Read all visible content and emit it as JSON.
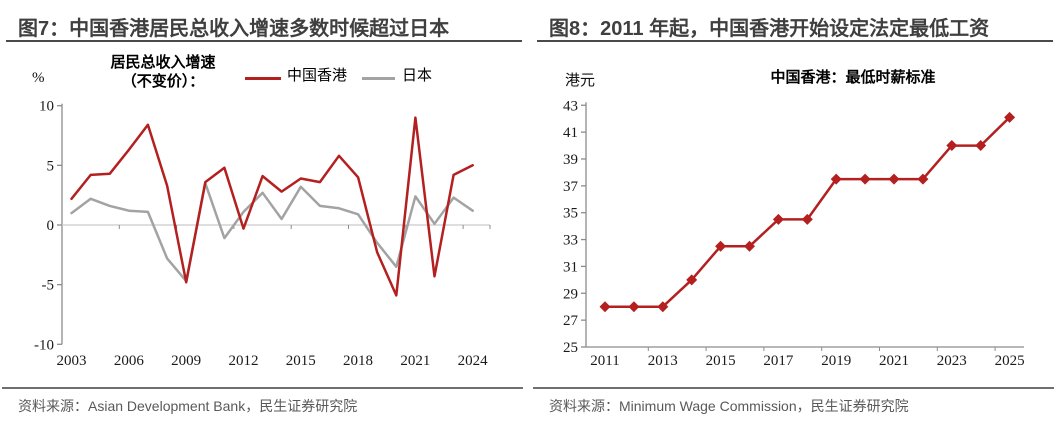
{
  "colors": {
    "hk_red": "#b42020",
    "japan_gray": "#a3a3a3",
    "title_text": "#3f3f3f",
    "title_rule": "#4a4a4a",
    "footer_text": "#595959",
    "footer_rule": "#6f6f6f",
    "axis_line": "#8c8c8c",
    "zero_gridline": "#c9c9c9",
    "tick_label": "#1a1a1a"
  },
  "figure7": {
    "title": "图7：中国香港居民总收入增速多数时候超过日本",
    "unit_label": "%",
    "legend": {
      "line1": "居民总收入增速",
      "line2": "（不变价）：",
      "entries": [
        {
          "label": "中国香港",
          "color": "#b42020"
        },
        {
          "label": "日本",
          "color": "#a3a3a3"
        }
      ]
    },
    "footer": "资料来源：Asian Development Bank，民生证券研究院"
  },
  "figure8": {
    "title": "图8：2011 年起，中国香港开始设定法定最低工资",
    "unit_label": "港元",
    "chart_title": "中国香港：最低时薪标准",
    "footer": "资料来源：Minimum Wage Commission，民生证券研究院"
  },
  "chart_data": [
    {
      "type": "line",
      "title": "居民总收入增速（不变价）：中国香港 vs 日本",
      "xlabel": "",
      "ylabel": "%",
      "ylim": [
        -10,
        10
      ],
      "y_ticks": [
        10,
        5,
        0,
        -5,
        -10
      ],
      "grid": "zero-line-only",
      "legend_position": "top",
      "x_label_step": 3,
      "x": [
        2003,
        2004,
        2005,
        2006,
        2007,
        2008,
        2009,
        2010,
        2011,
        2012,
        2013,
        2014,
        2015,
        2016,
        2017,
        2018,
        2019,
        2020,
        2021,
        2022,
        2023,
        2024
      ],
      "series": [
        {
          "name": "中国香港",
          "color": "#b42020",
          "values": [
            2.2,
            4.2,
            4.3,
            6.3,
            8.4,
            3.3,
            -4.8,
            3.6,
            4.8,
            -0.3,
            4.1,
            2.8,
            3.9,
            3.6,
            5.8,
            4.0,
            -2.3,
            -5.9,
            9.0,
            -4.3,
            4.2,
            5.0
          ]
        },
        {
          "name": "日本",
          "color": "#a3a3a3",
          "values": [
            1.0,
            2.2,
            1.6,
            1.2,
            1.1,
            -2.8,
            -4.7,
            3.5,
            -1.1,
            1.1,
            2.7,
            0.5,
            3.2,
            1.6,
            1.4,
            0.9,
            -1.5,
            -3.5,
            2.4,
            0.1,
            2.3,
            1.2
          ]
        }
      ]
    },
    {
      "type": "line",
      "title": "中国香港：最低时薪标准",
      "xlabel": "",
      "ylabel": "港元",
      "ylim": [
        25,
        43
      ],
      "y_ticks": [
        43,
        41,
        39,
        37,
        35,
        33,
        31,
        29,
        27,
        25
      ],
      "grid": "none",
      "legend_position": "none",
      "marker": "diamond",
      "x_label_step": 2,
      "x": [
        2011,
        2012,
        2013,
        2014,
        2015,
        2016,
        2017,
        2018,
        2019,
        2020,
        2021,
        2022,
        2023,
        2024,
        2025
      ],
      "series": [
        {
          "name": "最低时薪",
          "color": "#b42020",
          "values": [
            28,
            28,
            28,
            30,
            32.5,
            32.5,
            34.5,
            34.5,
            37.5,
            37.5,
            37.5,
            37.5,
            40,
            40,
            42.1
          ]
        }
      ]
    }
  ]
}
